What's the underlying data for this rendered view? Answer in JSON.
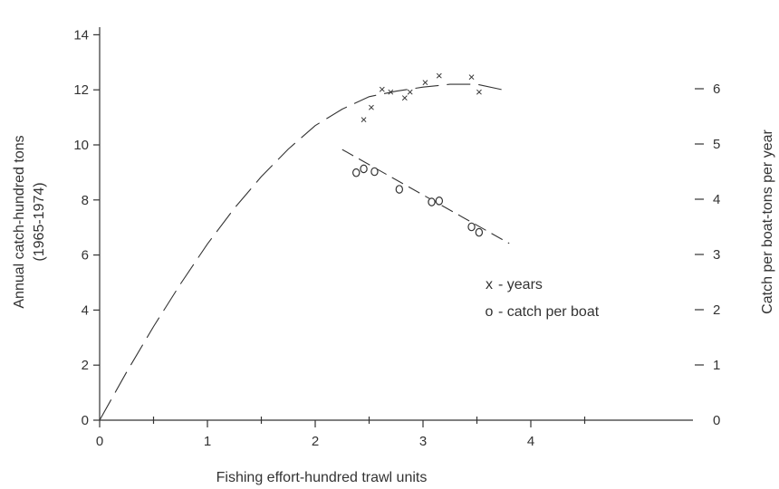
{
  "chart_data": {
    "type": "scatter",
    "xlabel": "Fishing effort-hundred trawl units",
    "ylabel_left": "Annual catch-hundred tons",
    "ylabel_left_sub": "(1965-1974)",
    "ylabel_right": "Catch per boat-tons per year",
    "xlim": [
      0,
      5.5
    ],
    "ylim_left": [
      0,
      14
    ],
    "ylim_right": [
      0,
      7
    ],
    "x_ticks": [
      0,
      1,
      2,
      3,
      4
    ],
    "x_minor_ticks": [
      0.5,
      1.5,
      2.5,
      3.5,
      4.5
    ],
    "y_left_ticks": [
      0,
      2,
      4,
      6,
      8,
      10,
      12,
      14
    ],
    "y_right_ticks": [
      0,
      1,
      2,
      3,
      4,
      5,
      6
    ],
    "grid": false,
    "legend_position": "right-middle",
    "series": [
      {
        "name": "years",
        "marker": "x",
        "axis": "left",
        "points": [
          {
            "x": 2.45,
            "y": 10.9
          },
          {
            "x": 2.52,
            "y": 11.35
          },
          {
            "x": 2.62,
            "y": 12.0
          },
          {
            "x": 2.7,
            "y": 11.9
          },
          {
            "x": 2.83,
            "y": 11.7
          },
          {
            "x": 2.88,
            "y": 11.9
          },
          {
            "x": 3.02,
            "y": 12.25
          },
          {
            "x": 3.15,
            "y": 12.5
          },
          {
            "x": 3.45,
            "y": 12.45
          },
          {
            "x": 3.52,
            "y": 11.9
          }
        ]
      },
      {
        "name": "catch per boat",
        "marker": "o",
        "axis": "right",
        "points": [
          {
            "x": 2.38,
            "y": 4.48
          },
          {
            "x": 2.45,
            "y": 4.55
          },
          {
            "x": 2.55,
            "y": 4.5
          },
          {
            "x": 2.78,
            "y": 4.18
          },
          {
            "x": 3.08,
            "y": 3.95
          },
          {
            "x": 3.15,
            "y": 3.97
          },
          {
            "x": 3.45,
            "y": 3.5
          },
          {
            "x": 3.52,
            "y": 3.4
          }
        ]
      }
    ],
    "fitted_curves": [
      {
        "name": "annual catch curve",
        "axis": "left",
        "style": "dashed",
        "points": [
          [
            0,
            0
          ],
          [
            0.25,
            1.75
          ],
          [
            0.5,
            3.4
          ],
          [
            0.75,
            4.95
          ],
          [
            1.0,
            6.4
          ],
          [
            1.25,
            7.7
          ],
          [
            1.5,
            8.85
          ],
          [
            1.75,
            9.85
          ],
          [
            2.0,
            10.7
          ],
          [
            2.25,
            11.3
          ],
          [
            2.5,
            11.75
          ],
          [
            2.75,
            11.95
          ],
          [
            3.0,
            12.1
          ],
          [
            3.25,
            12.2
          ],
          [
            3.5,
            12.2
          ],
          [
            3.8,
            11.95
          ]
        ]
      },
      {
        "name": "catch per boat line",
        "axis": "right",
        "style": "dashed",
        "points": [
          [
            2.25,
            4.9
          ],
          [
            3.8,
            3.2
          ]
        ]
      }
    ],
    "legend": [
      {
        "symbol": "x",
        "label": "- years"
      },
      {
        "symbol": "o",
        "label": "- catch per boat"
      }
    ]
  }
}
